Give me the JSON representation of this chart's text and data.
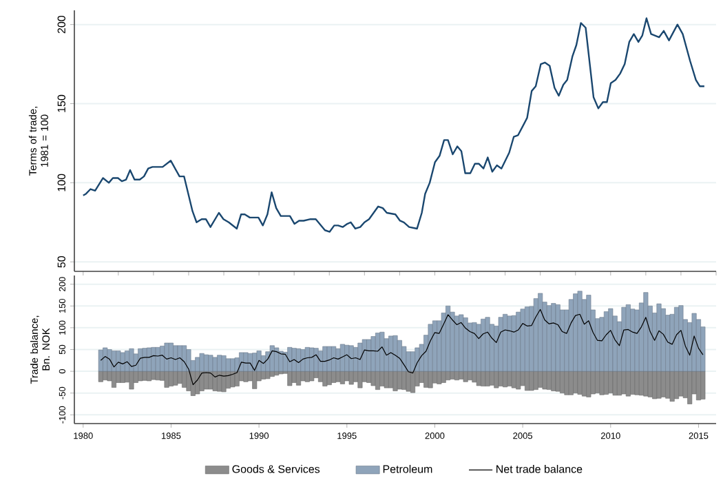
{
  "chart_data": [
    {
      "type": "line",
      "ylabel": "Terms of trade, 1981 = 100",
      "color": "#1a476f",
      "xlim": [
        1979.5,
        2016
      ],
      "ylim": [
        44,
        209
      ],
      "yticks": [
        50,
        100,
        150,
        200
      ],
      "grid": "y",
      "tick_labels": "y",
      "x": [
        1980.0,
        1980.16,
        1980.42,
        1980.68,
        1981.13,
        1981.46,
        1981.69,
        1981.98,
        1982.2,
        1982.44,
        1982.67,
        1982.92,
        1983.22,
        1983.46,
        1983.7,
        1983.94,
        1984.52,
        1984.98,
        1985.48,
        1985.74,
        1986.22,
        1986.45,
        1986.74,
        1986.98,
        1987.24,
        1987.72,
        1987.98,
        1988.28,
        1988.74,
        1988.98,
        1989.19,
        1989.48,
        1989.97,
        1990.22,
        1990.48,
        1990.72,
        1990.98,
        1991.24,
        1991.76,
        1992.02,
        1992.28,
        1992.54,
        1992.93,
        1993.23,
        1993.75,
        1994.02,
        1994.28,
        1994.5,
        1994.76,
        1995.02,
        1995.22,
        1995.48,
        1995.76,
        1996.0,
        1996.26,
        1996.78,
        1997.04,
        1997.27,
        1997.76,
        1998.02,
        1998.24,
        1998.54,
        1998.99,
        1999.26,
        1999.45,
        1999.71,
        2000.01,
        2000.27,
        2000.53,
        2000.75,
        2001.02,
        2001.28,
        2001.51,
        2001.73,
        2002.02,
        2002.28,
        2002.51,
        2002.77,
        2003.01,
        2003.27,
        2003.53,
        2003.79,
        2004.23,
        2004.49,
        2004.73,
        2005.25,
        2005.51,
        2005.74,
        2006.03,
        2006.26,
        2006.53,
        2006.81,
        2007.05,
        2007.31,
        2007.53,
        2007.83,
        2008.05,
        2008.31,
        2008.58,
        2009.03,
        2009.3,
        2009.56,
        2009.79,
        2010.01,
        2010.28,
        2010.54,
        2010.8,
        2011.06,
        2011.32,
        2011.58,
        2011.8,
        2012.04,
        2012.3,
        2012.53,
        2012.76,
        2013.02,
        2013.32,
        2013.8,
        2014.1,
        2014.52,
        2014.85,
        2015.07,
        2015.33
      ],
      "values": [
        92,
        93,
        96,
        95,
        103,
        100,
        103,
        103,
        101,
        102,
        108,
        102,
        102,
        104,
        109,
        110,
        110,
        114,
        104,
        104,
        82,
        75,
        77,
        77,
        72,
        81,
        77,
        75,
        71,
        80,
        80,
        78,
        78,
        73,
        80,
        94,
        84,
        79,
        79,
        74,
        76,
        76,
        77,
        77,
        70,
        69,
        73,
        73,
        72,
        74,
        75,
        71,
        72,
        75,
        77,
        85,
        84,
        81,
        80,
        76,
        75,
        72,
        71,
        81,
        93,
        100,
        113,
        117,
        127,
        127,
        118,
        123,
        120,
        106,
        106,
        112,
        112,
        109,
        116,
        107,
        111,
        109,
        119,
        129,
        130,
        141,
        158,
        161,
        175,
        176,
        174,
        160,
        155,
        162,
        165,
        180,
        187,
        201,
        198,
        154,
        147,
        151,
        151,
        163,
        165,
        169,
        175,
        189,
        194,
        189,
        193,
        204,
        194,
        193,
        192,
        196,
        190,
        200,
        194,
        177,
        165,
        161,
        161
      ]
    },
    {
      "type": "bar",
      "ylabel": "Trade balance, Bn. NOK",
      "xlim": [
        1979.5,
        2016
      ],
      "ylim": [
        -120,
        220
      ],
      "xticks": [
        1980,
        1985,
        1990,
        1995,
        2000,
        2005,
        2010,
        2015
      ],
      "yticks": [
        -100,
        -50,
        0,
        50,
        100,
        150,
        200
      ],
      "grid": "y",
      "legend": "bottom",
      "stacked": true,
      "x": [
        1981,
        1981.25,
        1981.5,
        1981.75,
        1982,
        1982.25,
        1982.5,
        1982.75,
        1983,
        1983.25,
        1983.5,
        1983.75,
        1984,
        1984.25,
        1984.5,
        1984.75,
        1985,
        1985.25,
        1985.5,
        1985.75,
        1986,
        1986.25,
        1986.5,
        1986.75,
        1987,
        1987.25,
        1987.5,
        1987.75,
        1988,
        1988.25,
        1988.5,
        1988.75,
        1989,
        1989.25,
        1989.5,
        1989.75,
        1990,
        1990.25,
        1990.5,
        1990.75,
        1991,
        1991.25,
        1991.5,
        1991.75,
        1992,
        1992.25,
        1992.5,
        1992.75,
        1993,
        1993.25,
        1993.5,
        1993.75,
        1994,
        1994.25,
        1994.5,
        1994.75,
        1995,
        1995.25,
        1995.5,
        1995.75,
        1996,
        1996.25,
        1996.5,
        1996.75,
        1997,
        1997.25,
        1997.5,
        1997.75,
        1998,
        1998.25,
        1998.5,
        1998.75,
        1999,
        1999.25,
        1999.5,
        1999.75,
        2000,
        2000.25,
        2000.5,
        2000.75,
        2001,
        2001.25,
        2001.5,
        2001.75,
        2002,
        2002.25,
        2002.5,
        2002.75,
        2003,
        2003.25,
        2003.5,
        2003.75,
        2004,
        2004.25,
        2004.5,
        2004.75,
        2005,
        2005.25,
        2005.5,
        2005.75,
        2006,
        2006.25,
        2006.5,
        2006.75,
        2007,
        2007.25,
        2007.5,
        2007.75,
        2008,
        2008.25,
        2008.5,
        2008.75,
        2009,
        2009.25,
        2009.5,
        2009.75,
        2010,
        2010.25,
        2010.5,
        2010.75,
        2011,
        2011.25,
        2011.5,
        2011.75,
        2012,
        2012.25,
        2012.5,
        2012.75,
        2013,
        2013.25,
        2013.5,
        2013.75,
        2014,
        2014.25,
        2014.5,
        2014.75,
        2015,
        2015.25
      ],
      "series": [
        {
          "name": "Goods & Services",
          "color": "#8c8c8c",
          "values": [
            -24,
            -20,
            -22,
            -37,
            -26,
            -26,
            -25,
            -41,
            -26,
            -22,
            -21,
            -22,
            -19,
            -20,
            -21,
            -37,
            -34,
            -32,
            -28,
            -37,
            -45,
            -56,
            -52,
            -45,
            -41,
            -41,
            -45,
            -46,
            -47,
            -39,
            -36,
            -34,
            -22,
            -24,
            -22,
            -40,
            -22,
            -18,
            -17,
            -12,
            -9,
            -6,
            -5,
            -33,
            -26,
            -32,
            -22,
            -24,
            -22,
            -15,
            -24,
            -34,
            -31,
            -26,
            -24,
            -29,
            -22,
            -30,
            -24,
            -38,
            -24,
            -26,
            -33,
            -42,
            -34,
            -38,
            -38,
            -45,
            -41,
            -42,
            -46,
            -49,
            -34,
            -26,
            -37,
            -38,
            -27,
            -29,
            -26,
            -20,
            -18,
            -20,
            -18,
            -24,
            -20,
            -25,
            -33,
            -34,
            -34,
            -32,
            -38,
            -34,
            -36,
            -34,
            -38,
            -41,
            -33,
            -44,
            -44,
            -42,
            -37,
            -41,
            -42,
            -45,
            -46,
            -50,
            -54,
            -54,
            -50,
            -53,
            -57,
            -59,
            -52,
            -50,
            -54,
            -53,
            -50,
            -55,
            -55,
            -52,
            -57,
            -53,
            -54,
            -55,
            -57,
            -59,
            -63,
            -62,
            -59,
            -62,
            -69,
            -63,
            -57,
            -61,
            -75,
            -52,
            -66,
            -64
          ]
        },
        {
          "name": "Petroleum",
          "color": "#8fa4ba",
          "values": [
            49,
            54,
            50,
            47,
            47,
            43,
            47,
            52,
            40,
            52,
            53,
            54,
            55,
            55,
            58,
            65,
            65,
            59,
            59,
            59,
            50,
            25,
            32,
            41,
            38,
            37,
            32,
            37,
            36,
            29,
            29,
            31,
            43,
            43,
            41,
            42,
            47,
            36,
            45,
            59,
            54,
            46,
            44,
            55,
            53,
            52,
            50,
            55,
            54,
            53,
            47,
            57,
            57,
            57,
            52,
            62,
            60,
            59,
            55,
            65,
            73,
            73,
            80,
            88,
            90,
            75,
            81,
            82,
            71,
            57,
            45,
            45,
            54,
            62,
            83,
            108,
            116,
            116,
            134,
            150,
            136,
            127,
            130,
            123,
            111,
            112,
            108,
            120,
            124,
            108,
            104,
            124,
            131,
            127,
            128,
            136,
            143,
            148,
            149,
            167,
            179,
            159,
            151,
            156,
            153,
            141,
            141,
            165,
            178,
            184,
            165,
            175,
            141,
            121,
            124,
            137,
            144,
            127,
            114,
            147,
            153,
            143,
            141,
            157,
            181,
            150,
            134,
            155,
            144,
            129,
            131,
            147,
            151,
            119,
            112,
            133,
            119,
            102
          ]
        },
        {
          "name": "Net trade balance",
          "type": "line",
          "color": "#000000",
          "values": [
            25,
            34,
            28,
            10,
            21,
            17,
            22,
            11,
            14,
            30,
            32,
            32,
            36,
            35,
            37,
            28,
            31,
            27,
            31,
            22,
            5,
            -31,
            -20,
            -4,
            -3,
            -4,
            -13,
            -9,
            -11,
            -10,
            -7,
            -3,
            21,
            19,
            19,
            2,
            25,
            18,
            28,
            47,
            45,
            40,
            39,
            22,
            27,
            20,
            28,
            31,
            32,
            38,
            23,
            23,
            26,
            31,
            28,
            33,
            38,
            29,
            31,
            27,
            49,
            47,
            47,
            46,
            56,
            37,
            43,
            37,
            30,
            15,
            -1,
            -4,
            20,
            36,
            46,
            70,
            89,
            87,
            108,
            130,
            118,
            107,
            112,
            99,
            91,
            87,
            75,
            86,
            90,
            76,
            66,
            90,
            95,
            93,
            90,
            95,
            110,
            104,
            105,
            125,
            142,
            118,
            109,
            111,
            107,
            91,
            87,
            111,
            128,
            131,
            108,
            116,
            89,
            71,
            70,
            84,
            94,
            72,
            59,
            95,
            96,
            90,
            87,
            102,
            124,
            91,
            71,
            93,
            85,
            67,
            62,
            84,
            94,
            58,
            37,
            81,
            53,
            38
          ]
        }
      ]
    }
  ]
}
